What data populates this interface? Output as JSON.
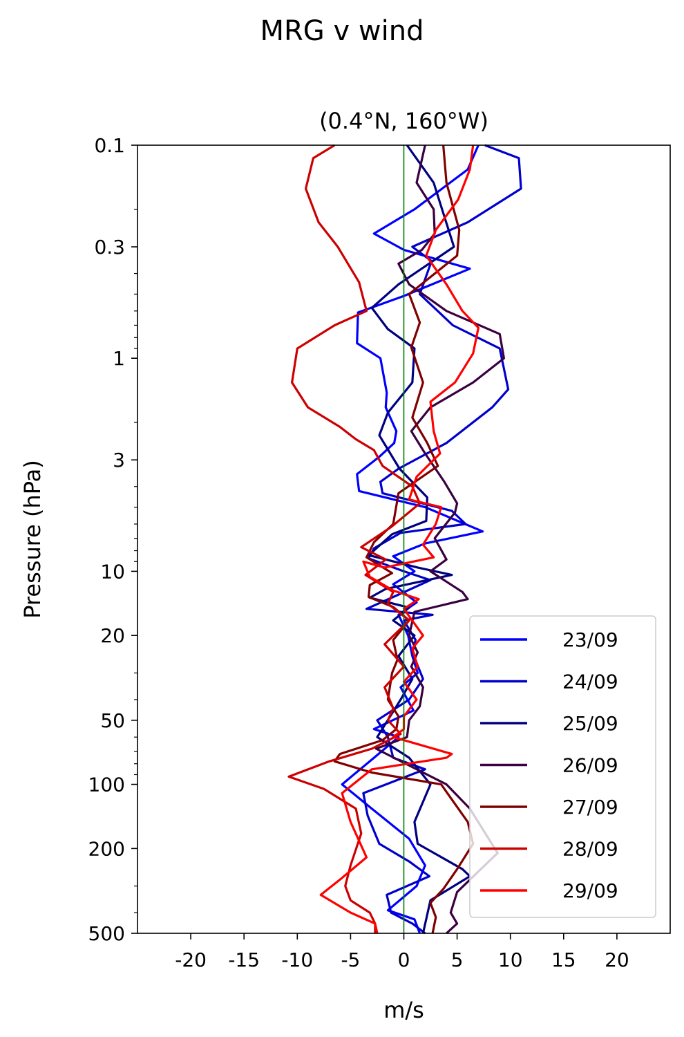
{
  "figure_title": "MRG v wind",
  "chart_data": {
    "type": "line",
    "title": "(0.4°N, 160°W)",
    "xlabel": "m/s",
    "ylabel": "Pressure (hPa)",
    "xlim": [
      -25,
      25
    ],
    "ylim": [
      500,
      0.1
    ],
    "y_scale": "log",
    "y_inverted": true,
    "grid": false,
    "legend_position": "bottom-right",
    "x_ticks": [
      -20,
      -15,
      -10,
      -5,
      0,
      5,
      10,
      15,
      20
    ],
    "x_tick_labels": [
      "-20",
      "-15",
      "-10",
      "-5",
      "0",
      "5",
      "10",
      "15",
      "20"
    ],
    "y_ticks": [
      0.1,
      0.3,
      1,
      3,
      10,
      20,
      50,
      100,
      200,
      500
    ],
    "y_tick_labels": [
      "0.1",
      "0.3",
      "1",
      "3",
      "10",
      "20",
      "50",
      "100",
      "200",
      "500"
    ],
    "zero_line": {
      "x": 0,
      "color": "#008000"
    },
    "series": [
      {
        "name": "23/09",
        "color": "#0000ff",
        "points": [
          [
            7,
            0.1
          ],
          [
            6,
            0.13
          ],
          [
            1,
            0.2
          ],
          [
            -2.8,
            0.26
          ],
          [
            0,
            0.31
          ],
          [
            6.2,
            0.38
          ],
          [
            0,
            0.51
          ],
          [
            -4.3,
            0.61
          ],
          [
            -4.4,
            0.85
          ],
          [
            -2.2,
            1.0
          ],
          [
            -1.6,
            1.45
          ],
          [
            -1.7,
            1.7
          ],
          [
            -0.7,
            2.2
          ],
          [
            -0.9,
            2.5
          ],
          [
            -2.3,
            2.9
          ],
          [
            -4.4,
            3.5
          ],
          [
            -4.2,
            4.2
          ],
          [
            2,
            5.0
          ],
          [
            7.4,
            6.5
          ],
          [
            2,
            7.4
          ],
          [
            -1,
            8.5
          ],
          [
            1,
            10
          ],
          [
            -1,
            11.5
          ],
          [
            1.2,
            14
          ],
          [
            -0.5,
            16
          ],
          [
            0.4,
            20
          ],
          [
            0.8,
            25
          ],
          [
            1.3,
            30
          ],
          [
            -0.3,
            35
          ],
          [
            0.9,
            45
          ],
          [
            -2.8,
            55
          ],
          [
            -0.5,
            60
          ],
          [
            -2.8,
            75
          ],
          [
            -5.8,
            100
          ],
          [
            -3,
            130
          ],
          [
            0.5,
            180
          ],
          [
            2,
            240
          ],
          [
            1.2,
            300
          ],
          [
            -1.5,
            390
          ],
          [
            1,
            430
          ],
          [
            1.5,
            500
          ]
        ]
      },
      {
        "name": "24/09",
        "color": "#0000cd",
        "points": [
          [
            7.6,
            0.1
          ],
          [
            10.8,
            0.115
          ],
          [
            11,
            0.16
          ],
          [
            6,
            0.23
          ],
          [
            0.8,
            0.3
          ],
          [
            2.6,
            0.35
          ],
          [
            1.5,
            0.5
          ],
          [
            4.6,
            0.7
          ],
          [
            9,
            0.9
          ],
          [
            9.8,
            1.4
          ],
          [
            8.3,
            1.7
          ],
          [
            4,
            2.5
          ],
          [
            -0.5,
            3.3
          ],
          [
            -2.2,
            3.8
          ],
          [
            -2,
            4.3
          ],
          [
            4.5,
            5.2
          ],
          [
            5.8,
            6.0
          ],
          [
            -0.3,
            6.6
          ],
          [
            -2.8,
            7.8
          ],
          [
            -3.3,
            8.7
          ],
          [
            0,
            10
          ],
          [
            2.5,
            11
          ],
          [
            -0.7,
            13
          ],
          [
            -3.5,
            15
          ],
          [
            2.7,
            16
          ],
          [
            0,
            17
          ],
          [
            1.1,
            21
          ],
          [
            0.8,
            24
          ],
          [
            1.8,
            32
          ],
          [
            0.5,
            40
          ],
          [
            -2.5,
            50
          ],
          [
            -1.5,
            60
          ],
          [
            -1,
            75
          ],
          [
            2,
            85
          ],
          [
            -3.8,
            110
          ],
          [
            -3.4,
            140
          ],
          [
            -2.3,
            190
          ],
          [
            0.5,
            230
          ],
          [
            2.4,
            270
          ],
          [
            -1.6,
            330
          ],
          [
            -1.2,
            400
          ],
          [
            0.8,
            450
          ],
          [
            2,
            500
          ]
        ]
      },
      {
        "name": "25/09",
        "color": "#000080",
        "points": [
          [
            0.3,
            0.1
          ],
          [
            2.8,
            0.15
          ],
          [
            4.7,
            0.3
          ],
          [
            -0.5,
            0.45
          ],
          [
            -3,
            0.58
          ],
          [
            -1.5,
            0.73
          ],
          [
            1,
            0.9
          ],
          [
            0.8,
            1.3
          ],
          [
            -1.5,
            1.8
          ],
          [
            -2.3,
            2.3
          ],
          [
            -0.4,
            3.3
          ],
          [
            2.2,
            4.5
          ],
          [
            2.1,
            5.8
          ],
          [
            -1.1,
            6.7
          ],
          [
            -3.3,
            8.4
          ],
          [
            1.3,
            9.6
          ],
          [
            4.5,
            10.4
          ],
          [
            -1.7,
            12.1
          ],
          [
            -3.2,
            13.3
          ],
          [
            0.5,
            14.8
          ],
          [
            -1,
            17
          ],
          [
            1,
            20
          ],
          [
            -0.5,
            25
          ],
          [
            0.8,
            32
          ],
          [
            -0.3,
            40
          ],
          [
            -2.5,
            60
          ],
          [
            0.5,
            75
          ],
          [
            2.5,
            100
          ],
          [
            1,
            150
          ],
          [
            1.3,
            190
          ],
          [
            5.5,
            250
          ],
          [
            6.2,
            270
          ],
          [
            2.5,
            350
          ],
          [
            1.8,
            500
          ]
        ]
      },
      {
        "name": "26/09",
        "color": "#3a0040",
        "points": [
          [
            2,
            0.1
          ],
          [
            1.2,
            0.15
          ],
          [
            2.8,
            0.2
          ],
          [
            2.9,
            0.26
          ],
          [
            1.7,
            0.31
          ],
          [
            -0.5,
            0.36
          ],
          [
            0.5,
            0.45
          ],
          [
            4,
            0.6
          ],
          [
            9,
            0.77
          ],
          [
            9.4,
            1.0
          ],
          [
            6.5,
            1.3
          ],
          [
            2.5,
            1.7
          ],
          [
            0.7,
            2.2
          ],
          [
            2,
            2.8
          ],
          [
            3.8,
            3.8
          ],
          [
            5,
            4.8
          ],
          [
            4.8,
            5.3
          ],
          [
            2.9,
            7.0
          ],
          [
            4,
            8.8
          ],
          [
            2.5,
            10
          ],
          [
            5.5,
            12.5
          ],
          [
            6,
            13.5
          ],
          [
            1,
            15.5
          ],
          [
            0.5,
            20
          ],
          [
            1.3,
            24
          ],
          [
            0.7,
            28
          ],
          [
            1.8,
            35
          ],
          [
            1.5,
            43
          ],
          [
            0.5,
            50
          ],
          [
            0.3,
            60
          ],
          [
            -2.6,
            68
          ],
          [
            4,
            100
          ],
          [
            6.2,
            130
          ],
          [
            8.8,
            210
          ],
          [
            5,
            320
          ],
          [
            4.4,
            400
          ],
          [
            5,
            450
          ],
          [
            4,
            500
          ]
        ]
      },
      {
        "name": "27/09",
        "color": "#800000",
        "points": [
          [
            3.7,
            0.1
          ],
          [
            4,
            0.15
          ],
          [
            5.2,
            0.25
          ],
          [
            5,
            0.33
          ],
          [
            0.5,
            0.5
          ],
          [
            1.5,
            0.68
          ],
          [
            0.7,
            0.89
          ],
          [
            1.8,
            1.3
          ],
          [
            0.8,
            1.9
          ],
          [
            2.2,
            2.5
          ],
          [
            3.2,
            3.2
          ],
          [
            -0.5,
            4.3
          ],
          [
            -1,
            6.0
          ],
          [
            -2.8,
            7.3
          ],
          [
            -3.5,
            8.6
          ],
          [
            -1.1,
            10.2
          ],
          [
            -3.2,
            11.6
          ],
          [
            -3.3,
            13.2
          ],
          [
            -1,
            14.7
          ],
          [
            0.5,
            17
          ],
          [
            -1,
            21
          ],
          [
            -0.6,
            26
          ],
          [
            -1.1,
            30
          ],
          [
            -1.5,
            40
          ],
          [
            -0.5,
            48
          ],
          [
            -0.7,
            55
          ],
          [
            -2,
            62
          ],
          [
            -6,
            72
          ],
          [
            -6.5,
            78
          ],
          [
            -3,
            88
          ],
          [
            3.5,
            100
          ],
          [
            6,
            150
          ],
          [
            6.5,
            190
          ],
          [
            5,
            250
          ],
          [
            3.7,
            310
          ],
          [
            2.5,
            360
          ],
          [
            3,
            420
          ],
          [
            2.7,
            500
          ]
        ]
      },
      {
        "name": "28/09",
        "color": "#cd0000",
        "points": [
          [
            -6.5,
            0.1
          ],
          [
            -8.5,
            0.115
          ],
          [
            -9.2,
            0.16
          ],
          [
            -8,
            0.23
          ],
          [
            -6.2,
            0.3
          ],
          [
            -4.2,
            0.44
          ],
          [
            -3.5,
            0.6
          ],
          [
            -6.5,
            0.7
          ],
          [
            -10,
            0.9
          ],
          [
            -10.5,
            1.3
          ],
          [
            -9,
            1.7
          ],
          [
            -6,
            2.1
          ],
          [
            -4.5,
            2.4
          ],
          [
            -2.8,
            2.7
          ],
          [
            -2,
            3.2
          ],
          [
            0.8,
            4.0
          ],
          [
            1.5,
            4.8
          ],
          [
            -1.2,
            6.2
          ],
          [
            -4,
            7.7
          ],
          [
            -1.7,
            8.8
          ],
          [
            -3.6,
            10.4
          ],
          [
            -1,
            12.5
          ],
          [
            -1.5,
            14.2
          ],
          [
            0.5,
            17
          ],
          [
            -1.8,
            22
          ],
          [
            0,
            28
          ],
          [
            -1.8,
            35
          ],
          [
            -1,
            44
          ],
          [
            -1.5,
            50
          ],
          [
            -0.3,
            58
          ],
          [
            -3,
            68
          ],
          [
            -7,
            78
          ],
          [
            -10.8,
            92
          ],
          [
            -7.5,
            105
          ],
          [
            -4.5,
            130
          ],
          [
            -4,
            170
          ],
          [
            -5,
            240
          ],
          [
            -5.5,
            300
          ],
          [
            -5,
            350
          ],
          [
            -3.2,
            400
          ],
          [
            -2.7,
            450
          ],
          [
            -2.7,
            500
          ]
        ]
      },
      {
        "name": "29/09",
        "color": "#ff0000",
        "points": [
          [
            6.5,
            0.1
          ],
          [
            6.2,
            0.13
          ],
          [
            5.1,
            0.18
          ],
          [
            3,
            0.25
          ],
          [
            2.1,
            0.33
          ],
          [
            4,
            0.45
          ],
          [
            5.5,
            0.6
          ],
          [
            7,
            0.72
          ],
          [
            6.5,
            0.95
          ],
          [
            4.8,
            1.3
          ],
          [
            2.5,
            1.6
          ],
          [
            2.8,
            2.2
          ],
          [
            3.4,
            2.8
          ],
          [
            1.2,
            3.6
          ],
          [
            0.5,
            4.6
          ],
          [
            3.5,
            5.0
          ],
          [
            3,
            6.0
          ],
          [
            1.8,
            7.5
          ],
          [
            2.8,
            8.6
          ],
          [
            -1.8,
            9.6
          ],
          [
            -3.8,
            9.0
          ],
          [
            -3.2,
            10.6
          ],
          [
            -1,
            12.3
          ],
          [
            1.4,
            13.5
          ],
          [
            0,
            15
          ],
          [
            1.8,
            20
          ],
          [
            0.8,
            23
          ],
          [
            1.3,
            28
          ],
          [
            0,
            33
          ],
          [
            1.2,
            40
          ],
          [
            0,
            48
          ],
          [
            0,
            55
          ],
          [
            -1,
            60
          ],
          [
            4.5,
            72
          ],
          [
            4,
            75
          ],
          [
            -3,
            85
          ],
          [
            -5.8,
            110
          ],
          [
            -5,
            150
          ],
          [
            -3.5,
            220
          ],
          [
            -6,
            280
          ],
          [
            -7.8,
            330
          ],
          [
            -5,
            400
          ],
          [
            -2.7,
            450
          ],
          [
            -2.5,
            500
          ]
        ]
      }
    ]
  }
}
